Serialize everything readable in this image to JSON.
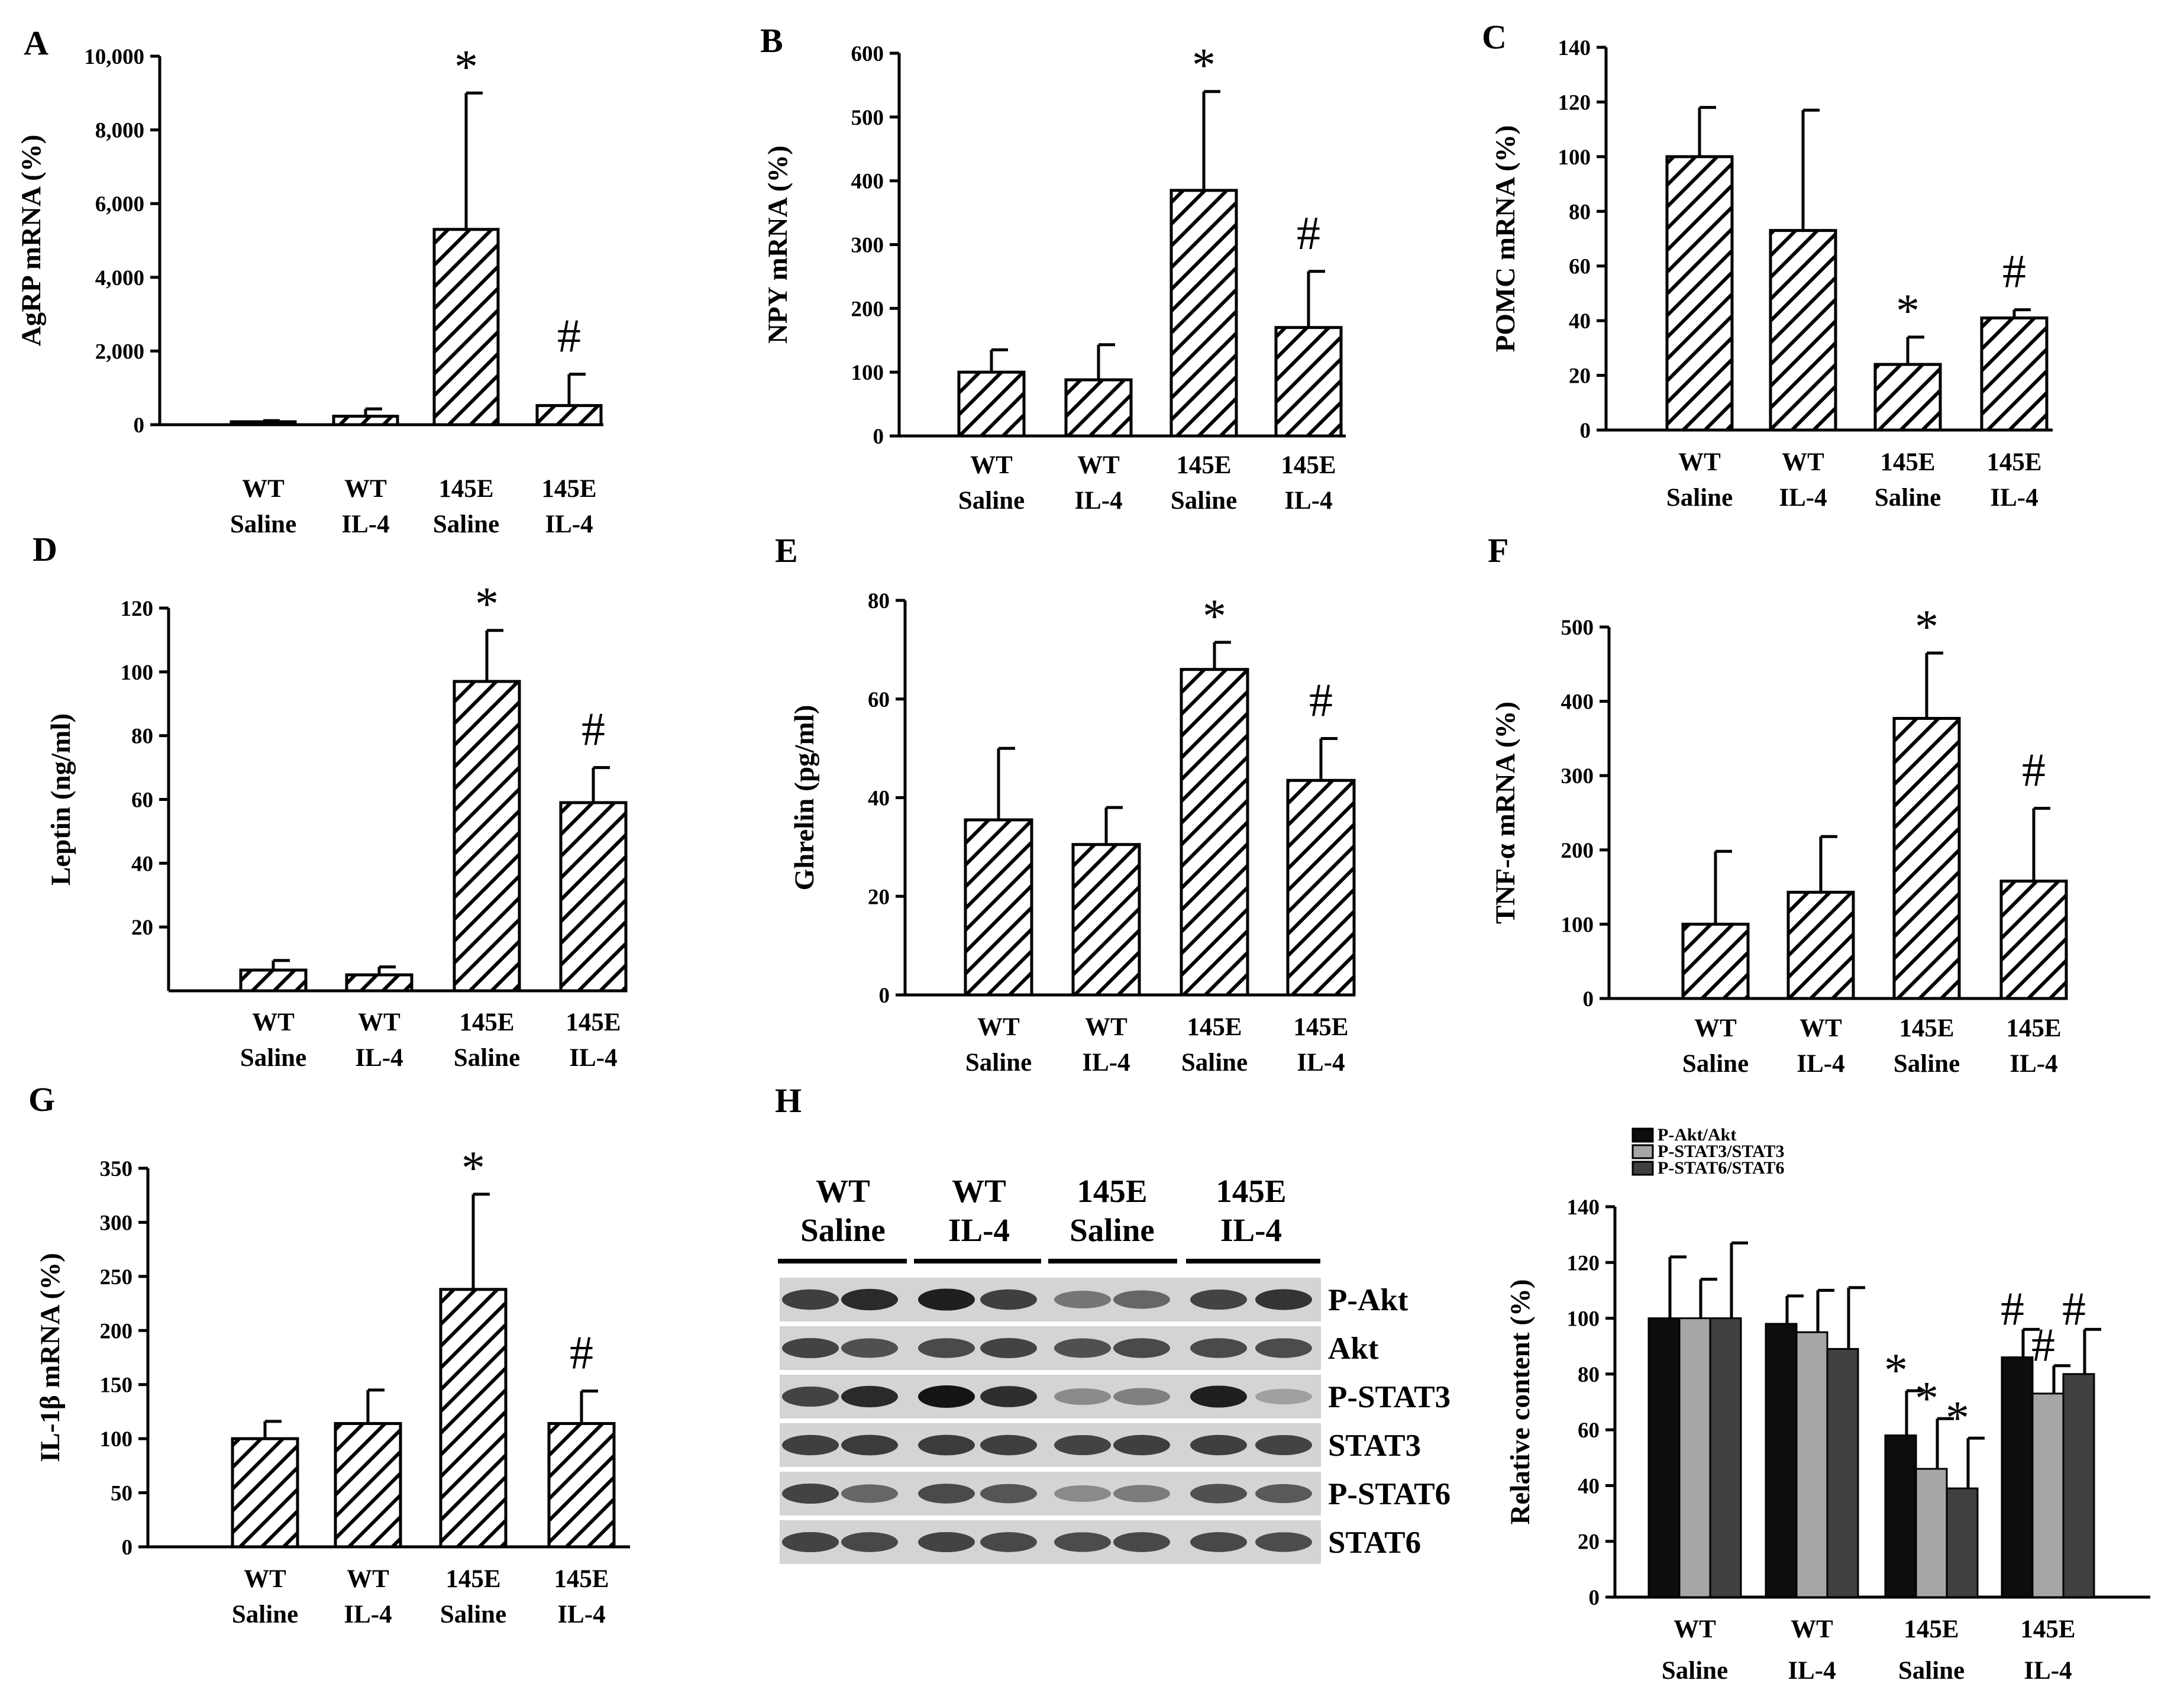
{
  "colors": {
    "black": "#000000",
    "hatch": "#000000",
    "akt": "#0d0d0d",
    "stat3": "#a6a6a6",
    "stat6": "#404040",
    "blot_bg": "#d4d4d4"
  },
  "chart_data": [
    {
      "panel": "A",
      "type": "bar",
      "categories": [
        [
          "WT",
          "Saline"
        ],
        [
          "WT",
          "IL-4"
        ],
        [
          "145E",
          "Saline"
        ],
        [
          "145E",
          "IL-4"
        ]
      ],
      "values": [
        80,
        230,
        5300,
        520
      ],
      "errors": [
        30,
        200,
        3700,
        850
      ],
      "significance": [
        "",
        "",
        "*",
        "#"
      ],
      "ylabel": "AgRP mRNA (%)",
      "ylim": [
        0,
        10000
      ],
      "yticks": [
        0,
        2000,
        4000,
        6000,
        8000,
        10000
      ],
      "yticklabels": [
        "0",
        "2,000",
        "4,000",
        "6,000",
        "8,000",
        "10,000"
      ]
    },
    {
      "panel": "B",
      "type": "bar",
      "categories": [
        [
          "WT",
          "Saline"
        ],
        [
          "WT",
          "IL-4"
        ],
        [
          "145E",
          "Saline"
        ],
        [
          "145E",
          "IL-4"
        ]
      ],
      "values": [
        100,
        88,
        385,
        170
      ],
      "errors": [
        35,
        55,
        155,
        88
      ],
      "significance": [
        "",
        "",
        "*",
        "#"
      ],
      "ylabel": "NPY mRNA (%)",
      "ylim": [
        0,
        600
      ],
      "yticks": [
        0,
        100,
        200,
        300,
        400,
        500,
        600
      ],
      "yticklabels": [
        "0",
        "100",
        "200",
        "300",
        "400",
        "500",
        "600"
      ]
    },
    {
      "panel": "C",
      "type": "bar",
      "categories": [
        [
          "WT",
          "Saline"
        ],
        [
          "WT",
          "IL-4"
        ],
        [
          "145E",
          "Saline"
        ],
        [
          "145E",
          "IL-4"
        ]
      ],
      "values": [
        100,
        73,
        24,
        41
      ],
      "errors": [
        18,
        44,
        10,
        3
      ],
      "significance": [
        "",
        "",
        "*",
        "#"
      ],
      "ylabel": "POMC mRNA (%)",
      "ylim": [
        0,
        140
      ],
      "yticks": [
        0,
        20,
        40,
        60,
        80,
        100,
        120,
        140
      ],
      "yticklabels": [
        "0",
        "20",
        "40",
        "60",
        "80",
        "100",
        "120",
        "140"
      ]
    },
    {
      "panel": "D",
      "type": "bar",
      "categories": [
        [
          "WT",
          "Saline"
        ],
        [
          "WT",
          "IL-4"
        ],
        [
          "145E",
          "Saline"
        ],
        [
          "145E",
          "IL-4"
        ]
      ],
      "values": [
        6.5,
        5,
        97,
        59
      ],
      "errors": [
        3,
        2.5,
        16,
        11
      ],
      "significance": [
        "",
        "",
        "*",
        "#"
      ],
      "ylabel": "Leptin (ng/ml)",
      "ylim": [
        0,
        120
      ],
      "yticks": [
        20,
        40,
        60,
        80,
        100,
        120
      ],
      "yticklabels": [
        "20",
        "40",
        "60",
        "80",
        "100",
        "120"
      ]
    },
    {
      "panel": "E",
      "type": "bar",
      "categories": [
        [
          "WT",
          "Saline"
        ],
        [
          "WT",
          "IL-4"
        ],
        [
          "145E",
          "Saline"
        ],
        [
          "145E",
          "IL-4"
        ]
      ],
      "values": [
        35.5,
        30.5,
        66,
        43.5
      ],
      "errors": [
        14.5,
        7.5,
        5.5,
        8.5
      ],
      "significance": [
        "",
        "",
        "*",
        "#"
      ],
      "ylabel": "Ghrelin (pg/ml)",
      "ylim": [
        0,
        80
      ],
      "yticks": [
        0,
        20,
        40,
        60,
        80
      ],
      "yticklabels": [
        "0",
        "20",
        "40",
        "60",
        "80"
      ]
    },
    {
      "panel": "F",
      "type": "bar",
      "categories": [
        [
          "WT",
          "Saline"
        ],
        [
          "WT",
          "IL-4"
        ],
        [
          "145E",
          "Saline"
        ],
        [
          "145E",
          "IL-4"
        ]
      ],
      "values": [
        100,
        143,
        377,
        158
      ],
      "errors": [
        98,
        75,
        88,
        98
      ],
      "significance": [
        "",
        "",
        "*",
        "#"
      ],
      "ylabel": "TNF-α mRNA (%)",
      "ylim": [
        0,
        500
      ],
      "yticks": [
        0,
        100,
        200,
        300,
        400,
        500
      ],
      "yticklabels": [
        "0",
        "100",
        "200",
        "300",
        "400",
        "500"
      ]
    },
    {
      "panel": "G",
      "type": "bar",
      "categories": [
        [
          "WT",
          "Saline"
        ],
        [
          "WT",
          "IL-4"
        ],
        [
          "145E",
          "Saline"
        ],
        [
          "145E",
          "IL-4"
        ]
      ],
      "values": [
        100,
        114,
        238,
        114
      ],
      "errors": [
        16,
        31,
        88,
        30
      ],
      "significance": [
        "",
        "",
        "*",
        "#"
      ],
      "ylabel": "IL-1β mRNA (%)",
      "ylim": [
        0,
        350
      ],
      "yticks": [
        0,
        50,
        100,
        150,
        200,
        250,
        300,
        350
      ],
      "yticklabels": [
        "0",
        "50",
        "100",
        "150",
        "200",
        "250",
        "300",
        "350"
      ]
    },
    {
      "panel": "H",
      "type": "bar",
      "categories": [
        [
          "WT",
          "Saline"
        ],
        [
          "WT",
          "IL-4"
        ],
        [
          "145E",
          "Saline"
        ],
        [
          "145E",
          "IL-4"
        ]
      ],
      "series": [
        {
          "name": "P-Akt/Akt",
          "values": [
            100,
            98,
            58,
            86
          ],
          "errors": [
            22,
            10,
            16,
            10
          ],
          "significance": [
            "",
            "",
            "*",
            "#"
          ]
        },
        {
          "name": "P-STAT3/STAT3",
          "values": [
            100,
            95,
            46,
            73
          ],
          "errors": [
            14,
            15,
            18,
            10
          ],
          "significance": [
            "",
            "",
            "*",
            "#"
          ]
        },
        {
          "name": "P-STAT6/STAT6",
          "values": [
            100,
            89,
            39,
            80
          ],
          "errors": [
            27,
            22,
            18,
            16
          ],
          "significance": [
            "",
            "",
            "*",
            "#"
          ]
        }
      ],
      "ylabel": "Relative content (%)",
      "ylim": [
        0,
        140
      ],
      "yticks": [
        0,
        20,
        40,
        60,
        80,
        100,
        120,
        140
      ],
      "yticklabels": [
        "0",
        "20",
        "40",
        "60",
        "80",
        "100",
        "120",
        "140"
      ]
    }
  ],
  "blot": {
    "groups": [
      [
        "WT",
        "Saline"
      ],
      [
        "WT",
        "IL-4"
      ],
      [
        "145E",
        "Saline"
      ],
      [
        "145E",
        "IL-4"
      ]
    ],
    "rows": [
      {
        "label": "P-Akt",
        "intensity": [
          0.8,
          0.9,
          0.95,
          0.8,
          0.55,
          0.62,
          0.78,
          0.85
        ]
      },
      {
        "label": "Akt",
        "intensity": [
          0.78,
          0.72,
          0.75,
          0.78,
          0.72,
          0.75,
          0.75,
          0.74
        ]
      },
      {
        "label": "P-STAT3",
        "intensity": [
          0.78,
          0.9,
          1.0,
          0.88,
          0.45,
          0.5,
          0.95,
          0.35
        ]
      },
      {
        "label": "STAT3",
        "intensity": [
          0.8,
          0.82,
          0.82,
          0.8,
          0.78,
          0.8,
          0.8,
          0.78
        ]
      },
      {
        "label": "P-STAT6",
        "intensity": [
          0.78,
          0.62,
          0.75,
          0.7,
          0.45,
          0.52,
          0.72,
          0.68
        ]
      },
      {
        "label": "STAT6",
        "intensity": [
          0.78,
          0.76,
          0.78,
          0.76,
          0.74,
          0.76,
          0.76,
          0.74
        ]
      }
    ]
  }
}
